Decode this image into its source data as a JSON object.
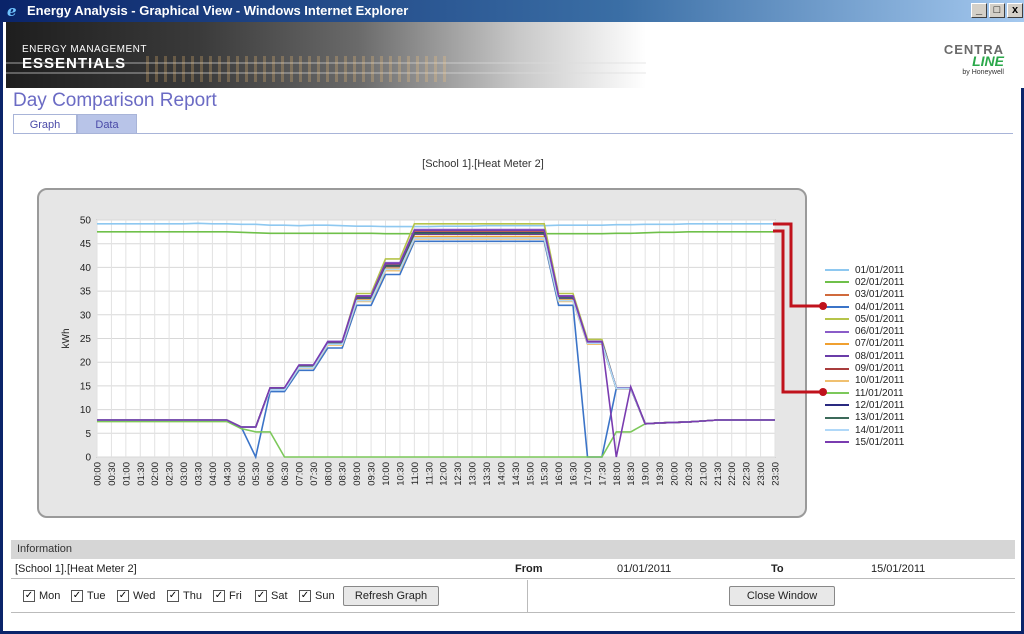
{
  "window": {
    "title": "Energy Analysis - Graphical View - Windows Internet Explorer",
    "min_label": "_",
    "max_label": "□",
    "close_label": "x"
  },
  "banner": {
    "brand_small": "ENERGY MANAGEMENT",
    "brand_big": "ESSENTIALS",
    "logo_line1": "CENTRA",
    "logo_line2": "LINE",
    "logo_by": "by Honeywell"
  },
  "page": {
    "title": "Day Comparison Report",
    "tabs": [
      {
        "label": "Graph",
        "active": true
      },
      {
        "label": "Data",
        "active": false
      }
    ]
  },
  "chart_data": {
    "type": "line",
    "title": "[School 1].[Heat Meter 2]",
    "ylabel": "kWh",
    "xlabel": "",
    "ylim": [
      0,
      50
    ],
    "yticks": [
      0,
      5,
      10,
      15,
      20,
      25,
      30,
      35,
      40,
      45,
      50
    ],
    "grid": true,
    "legend_position": "right",
    "x": [
      "00:00",
      "00:30",
      "01:00",
      "01:30",
      "02:00",
      "02:30",
      "03:00",
      "03:30",
      "04:00",
      "04:30",
      "05:00",
      "05:30",
      "06:00",
      "06:30",
      "07:00",
      "07:30",
      "08:00",
      "08:30",
      "09:00",
      "09:30",
      "10:00",
      "10:30",
      "11:00",
      "11:30",
      "12:00",
      "12:30",
      "13:00",
      "13:30",
      "14:00",
      "14:30",
      "15:00",
      "15:30",
      "16:00",
      "16:30",
      "17:00",
      "17:30",
      "18:00",
      "18:30",
      "19:00",
      "19:30",
      "20:00",
      "20:30",
      "21:00",
      "21:30",
      "22:00",
      "22:30",
      "23:00",
      "23:30"
    ],
    "series": [
      {
        "name": "01/01/2011",
        "color": "#8ec8f0",
        "values": [
          49.2,
          49.2,
          49.2,
          49.2,
          49.2,
          49.2,
          49.2,
          49.3,
          49.2,
          49.2,
          49.1,
          49.1,
          48.9,
          48.9,
          48.8,
          48.9,
          48.9,
          48.8,
          48.7,
          48.7,
          48.6,
          48.6,
          48.6,
          48.6,
          48.7,
          48.7,
          48.7,
          48.8,
          48.8,
          48.8,
          48.8,
          48.8,
          48.9,
          48.9,
          48.9,
          48.9,
          49.0,
          49.0,
          49.1,
          49.1,
          49.1,
          49.2,
          49.2,
          49.2,
          49.2,
          49.2,
          49.2,
          49.2
        ]
      },
      {
        "name": "02/01/2011",
        "color": "#6fc04a",
        "values": [
          47.5,
          47.5,
          47.5,
          47.5,
          47.5,
          47.5,
          47.5,
          47.5,
          47.5,
          47.5,
          47.4,
          47.3,
          47.2,
          47.2,
          47.2,
          47.2,
          47.2,
          47.2,
          47.2,
          47.2,
          47.1,
          47.1,
          47.1,
          47.1,
          47.1,
          47.1,
          47.1,
          47.1,
          47.1,
          47.1,
          47.1,
          47.1,
          47.1,
          47.1,
          47.1,
          47.1,
          47.2,
          47.2,
          47.3,
          47.4,
          47.4,
          47.5,
          47.5,
          47.5,
          47.5,
          47.5,
          47.5,
          47.5
        ]
      },
      {
        "name": "03/01/2011",
        "color": "#d06a3c",
        "values": [
          7.8,
          7.8,
          7.8,
          7.8,
          7.8,
          7.8,
          7.8,
          7.8,
          7.8,
          7.8,
          6.3,
          6.3,
          14.5,
          14.5,
          19.2,
          19.2,
          24.0,
          24.0,
          33.8,
          33.8,
          40.5,
          40.5,
          47.5,
          47.5,
          47.5,
          47.5,
          47.5,
          47.5,
          47.5,
          47.5,
          47.5,
          47.5,
          33.8,
          33.8,
          24.2,
          24.2,
          14.5,
          14.5,
          7.0,
          7.2,
          7.3,
          7.4,
          7.6,
          7.8,
          7.8,
          7.8,
          7.8,
          7.8
        ]
      },
      {
        "name": "04/01/2011",
        "color": "#3b74c8",
        "values": [
          7.8,
          7.8,
          7.8,
          7.8,
          7.8,
          7.8,
          7.8,
          7.8,
          7.8,
          7.8,
          6.3,
          0.0,
          13.8,
          13.8,
          18.3,
          18.3,
          23.0,
          23.0,
          32.0,
          32.0,
          38.5,
          38.5,
          45.5,
          45.5,
          45.5,
          45.5,
          45.5,
          45.5,
          45.5,
          45.5,
          45.5,
          45.5,
          32.0,
          32.0,
          0.0,
          0.0,
          14.5,
          14.5,
          7.0,
          7.2,
          7.3,
          7.4,
          7.6,
          7.8,
          7.8,
          7.8,
          7.8,
          7.8
        ]
      },
      {
        "name": "05/01/2011",
        "color": "#b6c44a",
        "values": [
          7.5,
          7.5,
          7.5,
          7.5,
          7.5,
          7.5,
          7.5,
          7.5,
          7.5,
          7.5,
          6.3,
          6.3,
          14.3,
          14.3,
          19.0,
          19.0,
          24.3,
          24.3,
          34.5,
          34.5,
          41.8,
          41.8,
          49.2,
          49.2,
          49.2,
          49.2,
          49.2,
          49.2,
          49.2,
          49.2,
          49.2,
          49.2,
          34.5,
          34.5,
          24.8,
          24.8,
          14.5,
          14.5,
          7.0,
          7.2,
          7.3,
          7.4,
          7.6,
          7.8,
          7.8,
          7.8,
          7.8,
          7.8
        ]
      },
      {
        "name": "06/01/2011",
        "color": "#8a5cc8",
        "values": [
          7.8,
          7.8,
          7.8,
          7.8,
          7.8,
          7.8,
          7.8,
          7.8,
          7.8,
          7.8,
          6.3,
          6.3,
          14.6,
          14.6,
          19.4,
          19.4,
          24.4,
          24.4,
          34.0,
          34.0,
          41.0,
          41.0,
          48.0,
          48.0,
          48.0,
          48.0,
          48.0,
          48.0,
          48.0,
          48.0,
          48.0,
          48.0,
          34.0,
          34.0,
          24.4,
          24.4,
          14.6,
          14.6,
          7.0,
          7.2,
          7.3,
          7.4,
          7.6,
          7.8,
          7.8,
          7.8,
          7.8,
          7.8
        ]
      },
      {
        "name": "07/01/2011",
        "color": "#f0a030",
        "values": [
          7.8,
          7.8,
          7.8,
          7.8,
          7.8,
          7.8,
          7.8,
          7.8,
          7.8,
          7.8,
          6.3,
          6.3,
          14.4,
          14.4,
          19.0,
          19.0,
          23.8,
          23.8,
          33.2,
          33.2,
          39.8,
          39.8,
          46.5,
          46.5,
          46.5,
          46.5,
          46.5,
          46.5,
          46.5,
          46.5,
          46.5,
          46.5,
          33.2,
          33.2,
          24.0,
          24.0,
          14.5,
          14.5,
          7.0,
          7.2,
          7.3,
          7.4,
          7.6,
          7.8,
          7.8,
          7.8,
          7.8,
          7.8
        ]
      },
      {
        "name": "08/01/2011",
        "color": "#6a3ca8",
        "values": [
          7.8,
          7.8,
          7.8,
          7.8,
          7.8,
          7.8,
          7.8,
          7.8,
          7.8,
          7.8,
          6.3,
          6.3,
          14.5,
          14.5,
          19.3,
          19.3,
          24.2,
          24.2,
          33.5,
          33.5,
          40.2,
          40.2,
          47.0,
          47.0,
          47.0,
          47.0,
          47.0,
          47.0,
          47.0,
          47.0,
          47.0,
          47.0,
          33.5,
          33.5,
          24.2,
          24.2,
          14.6,
          14.6,
          7.0,
          7.2,
          7.3,
          7.4,
          7.6,
          7.8,
          7.8,
          7.8,
          7.8,
          7.8
        ]
      },
      {
        "name": "09/01/2011",
        "color": "#a83c3c",
        "values": [
          7.8,
          7.8,
          7.8,
          7.8,
          7.8,
          7.8,
          7.8,
          7.8,
          7.8,
          7.8,
          6.3,
          6.3,
          14.5,
          14.5,
          19.2,
          19.2,
          24.1,
          24.1,
          33.6,
          33.6,
          40.3,
          40.3,
          47.2,
          47.2,
          47.2,
          47.2,
          47.2,
          47.2,
          47.2,
          47.2,
          47.2,
          47.2,
          33.6,
          33.6,
          24.1,
          24.1,
          14.5,
          14.5,
          7.0,
          7.2,
          7.3,
          7.4,
          7.6,
          7.8,
          7.8,
          7.8,
          7.8,
          7.8
        ]
      },
      {
        "name": "10/01/2011",
        "color": "#f0c070",
        "values": [
          7.8,
          7.8,
          7.8,
          7.8,
          7.8,
          7.8,
          7.8,
          7.8,
          7.8,
          7.8,
          6.3,
          6.3,
          14.2,
          14.2,
          18.8,
          18.8,
          23.6,
          23.6,
          32.8,
          32.8,
          39.3,
          39.3,
          46.0,
          46.0,
          46.0,
          46.0,
          46.0,
          46.0,
          46.0,
          46.0,
          46.0,
          46.0,
          32.8,
          32.8,
          23.8,
          23.8,
          14.5,
          14.5,
          7.0,
          7.2,
          7.3,
          7.4,
          7.6,
          7.8,
          7.8,
          7.8,
          7.8,
          7.8
        ]
      },
      {
        "name": "11/01/2011",
        "color": "#7cc85a",
        "values": [
          7.5,
          7.5,
          7.5,
          7.5,
          7.5,
          7.5,
          7.5,
          7.5,
          7.5,
          7.5,
          6.0,
          5.3,
          5.3,
          0.0,
          0.0,
          0.0,
          0.0,
          0.0,
          0.0,
          0.0,
          0.0,
          0.0,
          0.0,
          0.0,
          0.0,
          0.0,
          0.0,
          0.0,
          0.0,
          0.0,
          0.0,
          0.0,
          0.0,
          0.0,
          0.0,
          0.0,
          5.3,
          5.3,
          7.0,
          7.2,
          7.3,
          7.4,
          7.6,
          7.8,
          7.8,
          7.8,
          7.8,
          7.8
        ]
      },
      {
        "name": "12/01/2011",
        "color": "#2a2a80",
        "values": [
          7.8,
          7.8,
          7.8,
          7.8,
          7.8,
          7.8,
          7.8,
          7.8,
          7.8,
          7.8,
          6.3,
          6.3,
          14.5,
          14.5,
          19.3,
          19.3,
          24.2,
          24.2,
          33.7,
          33.7,
          40.4,
          40.4,
          47.3,
          47.3,
          47.3,
          47.3,
          47.3,
          47.3,
          47.3,
          47.3,
          47.3,
          47.3,
          33.7,
          33.7,
          24.2,
          24.2,
          14.5,
          14.5,
          7.0,
          7.2,
          7.3,
          7.4,
          7.6,
          7.8,
          7.8,
          7.8,
          7.8,
          7.8
        ]
      },
      {
        "name": "13/01/2011",
        "color": "#3c6a5a",
        "values": [
          7.8,
          7.8,
          7.8,
          7.8,
          7.8,
          7.8,
          7.8,
          7.8,
          7.8,
          7.8,
          6.3,
          6.3,
          14.5,
          14.5,
          19.2,
          19.2,
          24.0,
          24.0,
          33.6,
          33.6,
          40.3,
          40.3,
          47.2,
          47.2,
          47.2,
          47.2,
          47.2,
          47.2,
          47.2,
          47.2,
          47.2,
          47.2,
          33.6,
          33.6,
          24.0,
          24.0,
          14.5,
          14.5,
          7.0,
          7.2,
          7.3,
          7.4,
          7.6,
          7.8,
          7.8,
          7.8,
          7.8,
          7.8
        ]
      },
      {
        "name": "14/01/2011",
        "color": "#b0d8f8",
        "values": [
          7.8,
          7.8,
          7.8,
          7.8,
          7.8,
          7.8,
          7.8,
          7.8,
          7.8,
          7.8,
          6.3,
          6.3,
          14.2,
          14.2,
          18.9,
          18.9,
          23.8,
          23.8,
          33.0,
          33.0,
          39.6,
          39.6,
          46.2,
          46.2,
          46.2,
          46.2,
          46.2,
          46.2,
          46.2,
          46.2,
          46.2,
          46.2,
          33.0,
          33.0,
          24.0,
          24.0,
          14.5,
          14.5,
          7.0,
          7.2,
          7.3,
          7.4,
          7.6,
          7.8,
          7.8,
          7.8,
          7.8,
          7.8
        ]
      },
      {
        "name": "15/01/2011",
        "color": "#7a3cb0",
        "values": [
          7.8,
          7.8,
          7.8,
          7.8,
          7.8,
          7.8,
          7.8,
          7.8,
          7.8,
          7.8,
          6.3,
          6.3,
          14.6,
          14.6,
          19.4,
          19.4,
          24.3,
          24.3,
          33.9,
          33.9,
          40.8,
          40.8,
          47.8,
          47.8,
          47.8,
          47.8,
          47.8,
          47.8,
          47.8,
          47.8,
          47.8,
          47.8,
          33.9,
          33.9,
          24.3,
          24.3,
          0.0,
          14.8,
          7.0,
          7.2,
          7.3,
          7.4,
          7.6,
          7.8,
          7.8,
          7.8,
          7.8,
          7.8
        ]
      }
    ]
  },
  "annotation": {
    "marker_color": "#c0121c"
  },
  "info": {
    "header": "Information",
    "source": "[School 1].[Heat Meter 2]",
    "from_label": "From",
    "from_value": "01/01/2011",
    "to_label": "To",
    "to_value": "15/01/2011"
  },
  "controls": {
    "days": [
      {
        "label": "Mon",
        "checked": true
      },
      {
        "label": "Tue",
        "checked": true
      },
      {
        "label": "Wed",
        "checked": true
      },
      {
        "label": "Thu",
        "checked": true
      },
      {
        "label": "Fri",
        "checked": true
      },
      {
        "label": "Sat",
        "checked": true
      },
      {
        "label": "Sun",
        "checked": true
      }
    ],
    "check_glyph": "✓",
    "refresh_label": "Refresh Graph",
    "close_label": "Close Window"
  }
}
